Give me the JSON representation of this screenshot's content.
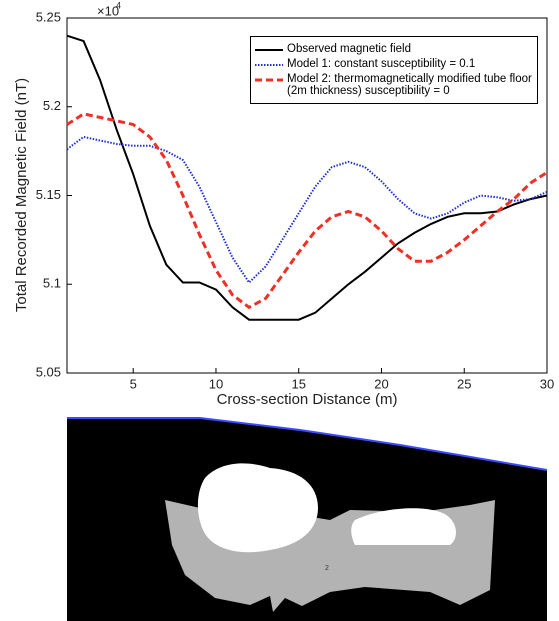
{
  "chart_data": {
    "type": "line",
    "xlabel": "Cross-section Distance (m)",
    "ylabel": "Total Recorded Magnetic Field (nT)",
    "y_scale_base": "×10",
    "y_scale_exponent": "4",
    "x": [
      1,
      2,
      3,
      4,
      5,
      6,
      7,
      8,
      9,
      10,
      11,
      12,
      13,
      14,
      15,
      16,
      17,
      18,
      19,
      20,
      21,
      22,
      23,
      24,
      25,
      26,
      27,
      28,
      29,
      30
    ],
    "series": [
      {
        "name": "Observed magnetic field",
        "color": "#000000",
        "dash": "solid",
        "values": [
          5.24,
          5.237,
          5.215,
          5.187,
          5.162,
          5.133,
          5.111,
          5.101,
          5.101,
          5.097,
          5.087,
          5.08,
          5.08,
          5.08,
          5.08,
          5.084,
          5.092,
          5.1,
          5.107,
          5.115,
          5.123,
          5.129,
          5.134,
          5.138,
          5.14,
          5.14,
          5.141,
          5.145,
          5.148,
          5.15
        ]
      },
      {
        "name": "Model 1: constant susceptibility = 0.1",
        "color": "#1f2fd6",
        "dash": "dotted",
        "values": [
          5.176,
          5.183,
          5.181,
          5.179,
          5.178,
          5.178,
          5.175,
          5.17,
          5.155,
          5.135,
          5.115,
          5.101,
          5.11,
          5.125,
          5.14,
          5.155,
          5.166,
          5.169,
          5.166,
          5.158,
          5.148,
          5.14,
          5.137,
          5.14,
          5.146,
          5.15,
          5.149,
          5.147,
          5.148,
          5.152
        ]
      },
      {
        "name": "Model 2: thermomagnetically modified tube floor (2m thickness) susceptibility = 0",
        "color": "#f03024",
        "dash": "dashed",
        "values": [
          5.19,
          5.196,
          5.194,
          5.192,
          5.19,
          5.183,
          5.17,
          5.15,
          5.128,
          5.108,
          5.094,
          5.087,
          5.092,
          5.105,
          5.118,
          5.13,
          5.138,
          5.141,
          5.138,
          5.13,
          5.12,
          5.113,
          5.113,
          5.118,
          5.125,
          5.133,
          5.141,
          5.148,
          5.157,
          5.163
        ]
      }
    ],
    "xlim": [
      1,
      30
    ],
    "xticks": [
      5,
      10,
      15,
      20,
      25,
      30
    ],
    "ylim": [
      5.05,
      5.25
    ],
    "yticks": [
      5.05,
      5.1,
      5.15,
      5.2,
      5.25
    ],
    "legend": "upper right",
    "grid": false
  },
  "cross_section_label": "2"
}
